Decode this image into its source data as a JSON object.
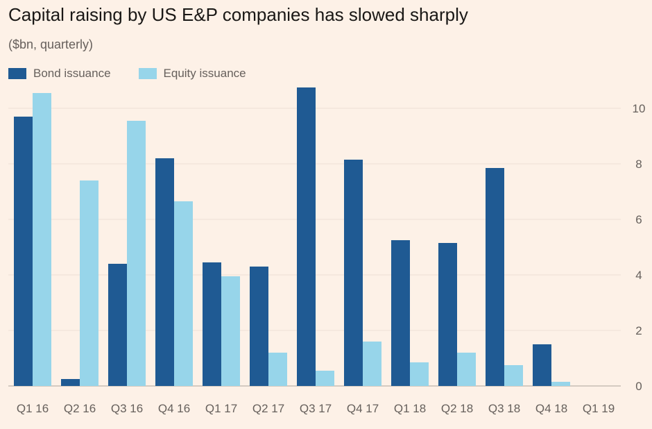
{
  "chart_data": {
    "type": "bar",
    "title": "Capital raising by US E&P companies has slowed sharply",
    "subtitle": "($bn, quarterly)",
    "xlabel": "",
    "ylabel": "",
    "ylim": [
      0,
      10.9
    ],
    "yticks": [
      0,
      2,
      4,
      6,
      8,
      10
    ],
    "categories": [
      "Q1 16",
      "Q2 16",
      "Q3 16",
      "Q4 16",
      "Q1 17",
      "Q2 17",
      "Q3 17",
      "Q4 17",
      "Q1 18",
      "Q2 18",
      "Q3 18",
      "Q4 18",
      "Q1 19"
    ],
    "series": [
      {
        "name": "Bond issuance",
        "color": "#1f5a93",
        "values": [
          9.7,
          0.25,
          4.4,
          8.2,
          4.45,
          4.3,
          10.75,
          8.15,
          5.25,
          5.15,
          7.85,
          1.5,
          0
        ]
      },
      {
        "name": "Equity issuance",
        "color": "#97d5ea",
        "values": [
          10.55,
          7.4,
          9.55,
          6.65,
          3.95,
          1.2,
          0.55,
          1.6,
          0.85,
          1.2,
          0.75,
          0.15,
          0
        ]
      }
    ],
    "legend_position": "top-left",
    "y_axis_side": "right",
    "grid": true
  }
}
